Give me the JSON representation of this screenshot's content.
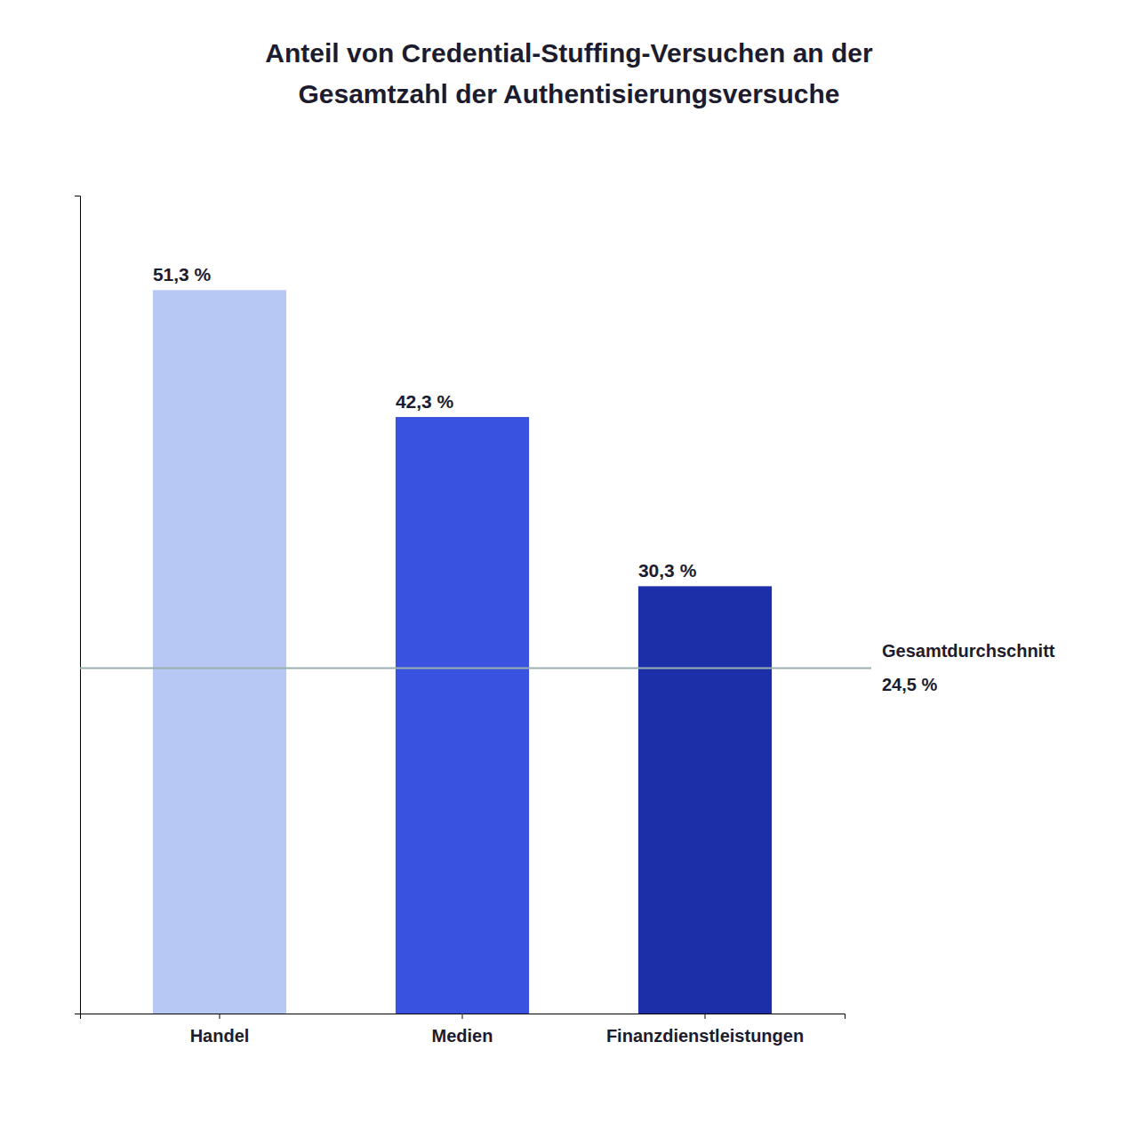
{
  "chart_data": {
    "type": "bar",
    "title": "Anteil von Credential-Stuffing-Versuchen an der\nGesamtzahl der Authentisierungsversuche",
    "categories": [
      "Handel",
      "Medien",
      "Finanzdienstleistungen"
    ],
    "values": [
      51.3,
      42.3,
      30.3
    ],
    "value_labels": [
      "51,3 %",
      "42,3 %",
      "30,3 %"
    ],
    "colors": [
      "#b8c8f5",
      "#3a52e0",
      "#1c2fa8"
    ],
    "reference_line": {
      "value": 24.5,
      "label": "Gesamtdurchschnitt",
      "value_label": "24,5 %",
      "color": "#9ab0b0"
    },
    "ylim": [
      0,
      58
    ],
    "yticks": [],
    "tick_labels": "x",
    "grid": false
  }
}
